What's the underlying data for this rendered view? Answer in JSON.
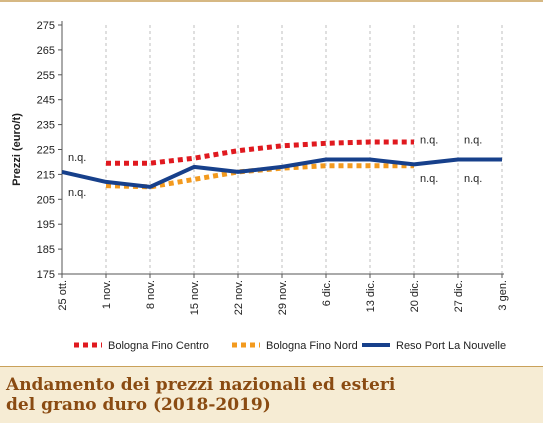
{
  "caption": {
    "line1": "Andamento dei prezzi nazionali ed esteri",
    "line2": "del grano duro (2018-2019)"
  },
  "chart_data": {
    "type": "line",
    "title": "",
    "xlabel": "",
    "ylabel": "Prezzi (euro/t)",
    "ylim": [
      175,
      275
    ],
    "yticks": [
      175,
      185,
      195,
      205,
      215,
      225,
      235,
      245,
      255,
      265,
      275
    ],
    "categories": [
      "25 ott.",
      "1 nov.",
      "8 nov.",
      "15 nov.",
      "22 nov.",
      "29 nov.",
      "6 dic.",
      "13 dic.",
      "20 dic.",
      "27 dic.",
      "3 gen."
    ],
    "grid": "vertical dashed",
    "legend_position": "bottom",
    "series": [
      {
        "name": "Bologna Fino Centro",
        "color": "#e0191f",
        "style": "dotted",
        "values": [
          null,
          219.5,
          219.5,
          221.5,
          224.5,
          226.5,
          227.5,
          228,
          228,
          null,
          null
        ]
      },
      {
        "name": "Bologna Fino Nord",
        "color": "#f39a1e",
        "style": "dotted",
        "values": [
          null,
          210.5,
          210,
          213,
          216,
          217.5,
          218.5,
          218.5,
          218.5,
          null,
          null
        ]
      },
      {
        "name": "Reso Port La Nouvelle",
        "color": "#17408b",
        "style": "solid",
        "values": [
          216,
          212,
          210,
          218,
          216,
          218,
          221,
          221,
          219,
          221,
          221
        ]
      }
    ],
    "annotations": [
      {
        "text": "n.q.",
        "category": "25 ott.",
        "value": 222
      },
      {
        "text": "n.q.",
        "category": "25 ott.",
        "value": 208
      },
      {
        "text": "n.q.",
        "category": "20 dic.",
        "value": 229
      },
      {
        "text": "n.q.",
        "category": "27 dic.",
        "value": 229
      },
      {
        "text": "n.q.",
        "category": "20 dic.",
        "value": 213.5
      },
      {
        "text": "n.q.",
        "category": "27 dic.",
        "value": 213.5
      }
    ]
  }
}
